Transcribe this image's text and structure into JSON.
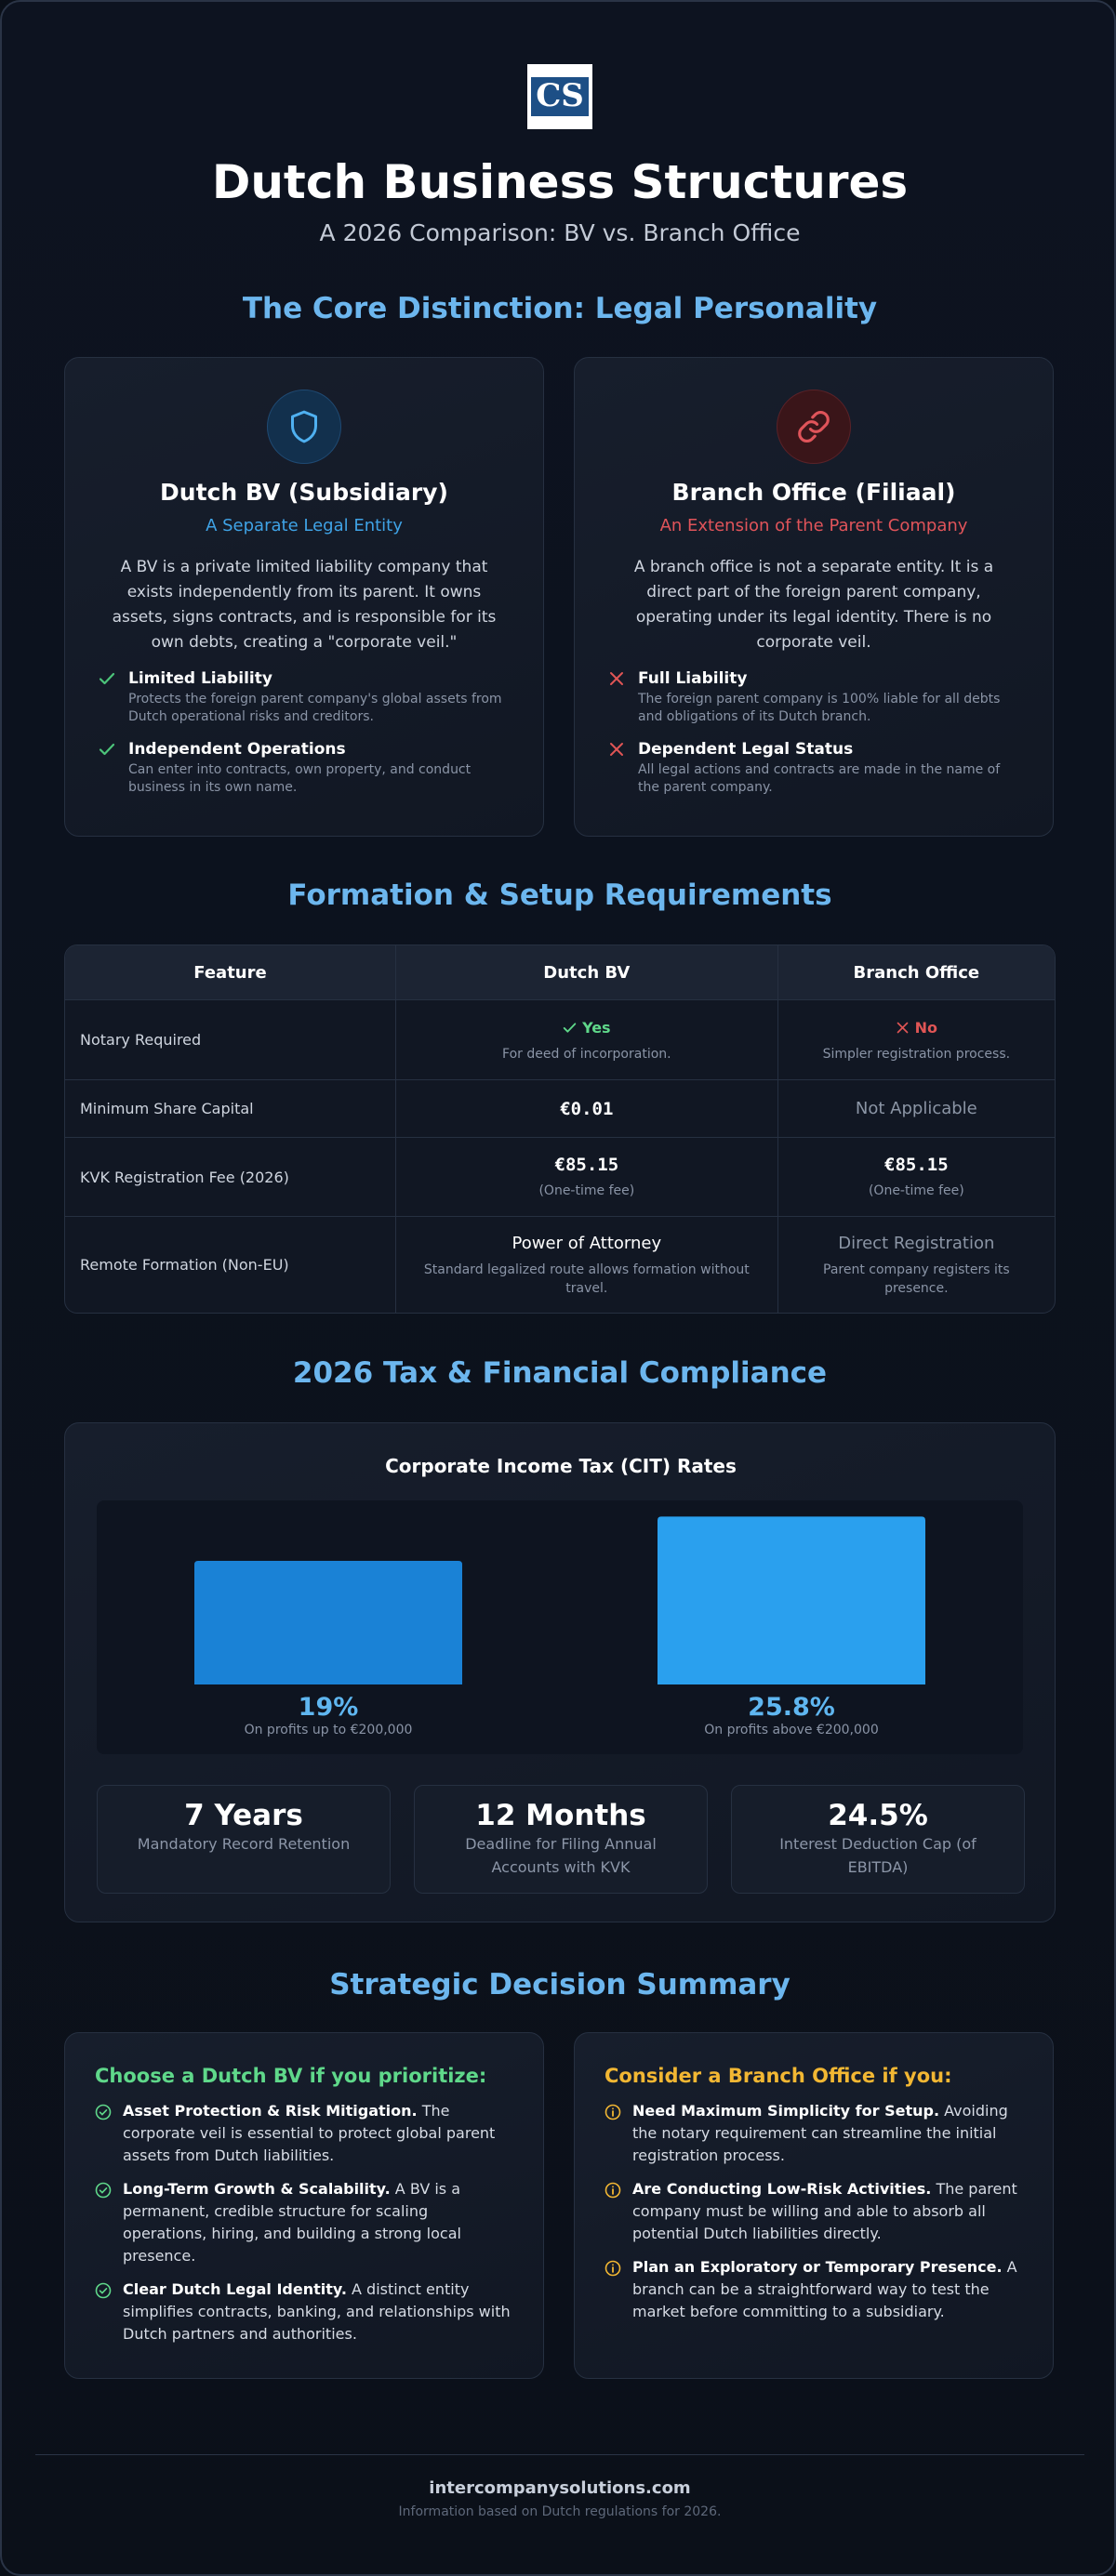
{
  "header": {
    "logo_text": "CS",
    "title": "Dutch Business Structures",
    "subtitle": "A 2026 Comparison: BV vs. Branch Office"
  },
  "core": {
    "heading": "The Core Distinction: Legal Personality",
    "cards": [
      {
        "title": "Dutch BV (Subsidiary)",
        "subtitle": "A Separate Legal Entity",
        "description": "A BV is a private limited liability company that exists independently from its parent. It owns assets, signs contracts, and is responsible for its own debts, creating a \"corporate veil.\"",
        "points": [
          {
            "title": "Limited Liability",
            "text": "Protects the foreign parent company's global assets from Dutch operational risks and creditors."
          },
          {
            "title": "Independent Operations",
            "text": "Can enter into contracts, own property, and conduct business in its own name."
          }
        ]
      },
      {
        "title": "Branch Office (Filiaal)",
        "subtitle": "An Extension of the Parent Company",
        "description": "A branch office is not a separate entity. It is a direct part of the foreign parent company, operating under its legal identity. There is no corporate veil.",
        "points": [
          {
            "title": "Full Liability",
            "text": "The foreign parent company is 100% liable for all debts and obligations of its Dutch branch."
          },
          {
            "title": "Dependent Legal Status",
            "text": "All legal actions and contracts are made in the name of the parent company."
          }
        ]
      }
    ]
  },
  "formation": {
    "heading": "Formation & Setup Requirements",
    "table": {
      "columns": [
        "Feature",
        "Dutch BV",
        "Branch Office"
      ],
      "rows": [
        {
          "feature": "Notary Required",
          "bv": {
            "main": "Yes",
            "note": "For deed of incorporation."
          },
          "branch": {
            "main": "No",
            "note": "Simpler registration process."
          }
        },
        {
          "feature": "Minimum Share Capital",
          "bv": {
            "main": "€0.01"
          },
          "branch": {
            "main": "Not Applicable"
          }
        },
        {
          "feature": "KVK Registration Fee (2026)",
          "bv": {
            "main": "€85.15",
            "note": "(One-time fee)"
          },
          "branch": {
            "main": "€85.15",
            "note": "(One-time fee)"
          }
        },
        {
          "feature": "Remote Formation (Non-EU)",
          "bv": {
            "main": "Power of Attorney",
            "note": "Standard legalized route allows formation without travel."
          },
          "branch": {
            "main": "Direct Registration",
            "note": "Parent company registers its presence."
          }
        }
      ]
    }
  },
  "tax": {
    "heading": "2026 Tax & Financial Compliance",
    "chart_data": {
      "type": "bar",
      "title": "Corporate Income Tax (CIT) Rates",
      "categories": [
        "On profits up to €200,000",
        "On profits above €200,000"
      ],
      "values": [
        19,
        25.8
      ],
      "value_labels": [
        "19%",
        "25.8%"
      ],
      "colors": [
        "#1a82d6",
        "#2aa0ee"
      ]
    },
    "stats": [
      {
        "value": "7 Years",
        "label": "Mandatory Record Retention"
      },
      {
        "value": "12 Months",
        "label": "Deadline for Filing Annual Accounts with KVK"
      },
      {
        "value": "24.5%",
        "label": "Interest Deduction Cap (of EBITDA)"
      }
    ]
  },
  "summary": {
    "heading": "Strategic Decision Summary",
    "cards": [
      {
        "title": "Choose a Dutch BV if you prioritize:",
        "items": [
          {
            "lead": "Asset Protection & Risk Mitigation.",
            "text": "The corporate veil is essential to protect global parent assets from Dutch liabilities."
          },
          {
            "lead": "Long-Term Growth & Scalability.",
            "text": "A BV is a permanent, credible structure for scaling operations, hiring, and building a strong local presence."
          },
          {
            "lead": "Clear Dutch Legal Identity.",
            "text": "A distinct entity simplifies contracts, banking, and relationships with Dutch partners and authorities."
          }
        ]
      },
      {
        "title": "Consider a Branch Office if you:",
        "items": [
          {
            "lead": "Need Maximum Simplicity for Setup.",
            "text": "Avoiding the notary requirement can streamline the initial registration process."
          },
          {
            "lead": "Are Conducting Low-Risk Activities.",
            "text": "The parent company must be willing and able to absorb all potential Dutch liabilities directly."
          },
          {
            "lead": "Plan an Exploratory or Temporary Presence.",
            "text": "A branch can be a straightforward way to test the market before committing to a subsidiary."
          }
        ]
      }
    ]
  },
  "footer": {
    "site": "intercompanysolutions.com",
    "note": "Information based on Dutch regulations for 2026."
  }
}
